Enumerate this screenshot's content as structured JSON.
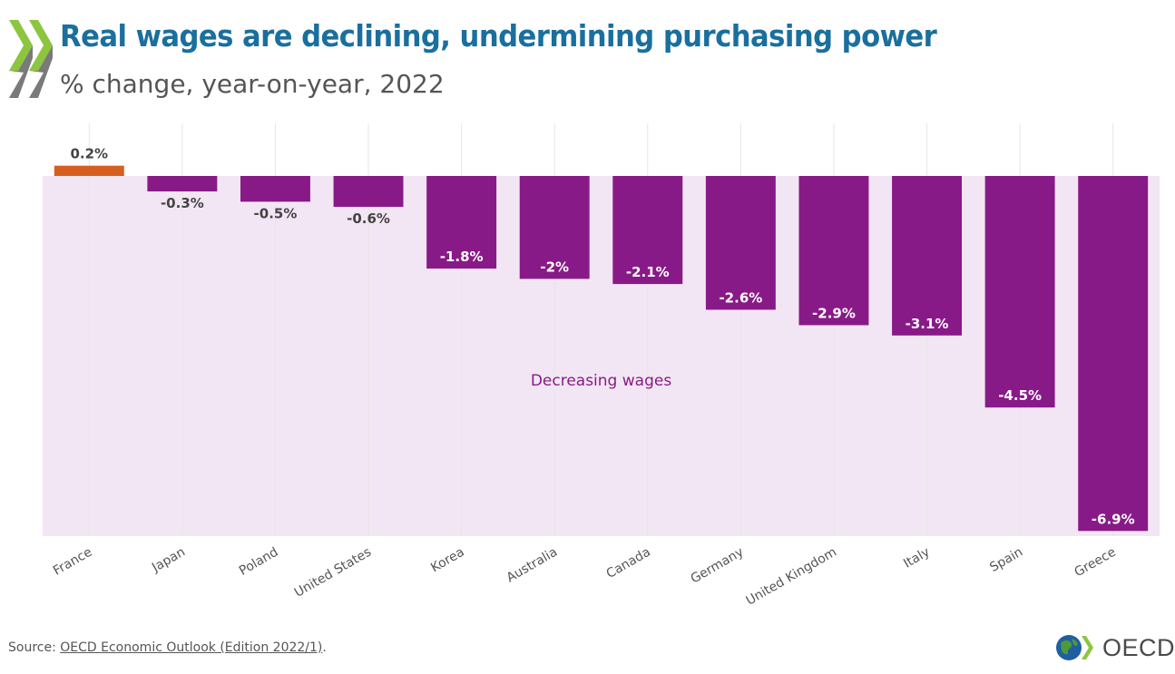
{
  "header": {
    "title": "Real wages are declining, undermining purchasing power",
    "subtitle": "% change, year-on-year, 2022"
  },
  "chart_data": {
    "type": "bar",
    "categories": [
      "France",
      "Japan",
      "Poland",
      "United States",
      "Korea",
      "Australia",
      "Canada",
      "Germany",
      "United Kingdom",
      "Italy",
      "Spain",
      "Greece"
    ],
    "values": [
      0.2,
      -0.3,
      -0.5,
      -0.6,
      -1.8,
      -2,
      -2.1,
      -2.6,
      -2.9,
      -3.1,
      -4.5,
      -6.9
    ],
    "data_labels": [
      "0.2%",
      "-0.3%",
      "-0.5%",
      "-0.6%",
      "-1.8%",
      "-2%",
      "-2.1%",
      "-2.6%",
      "-2.9%",
      "-3.1%",
      "-4.5%",
      "-6.9%"
    ],
    "ylim": [
      -7,
      0
    ],
    "annotation": "Decreasing wages",
    "colors": {
      "positive": "#d65f1f",
      "negative": "#881a87",
      "negative_region": "#f3e6f4",
      "annotation": "#881a87",
      "gridline": "#e6e6e6"
    },
    "grid": "vertical"
  },
  "footer": {
    "source_prefix": "Source: ",
    "source_link": "OECD Economic Outlook (Edition 2022/1)",
    "source_suffix": ".",
    "logo_text": "OECD"
  }
}
